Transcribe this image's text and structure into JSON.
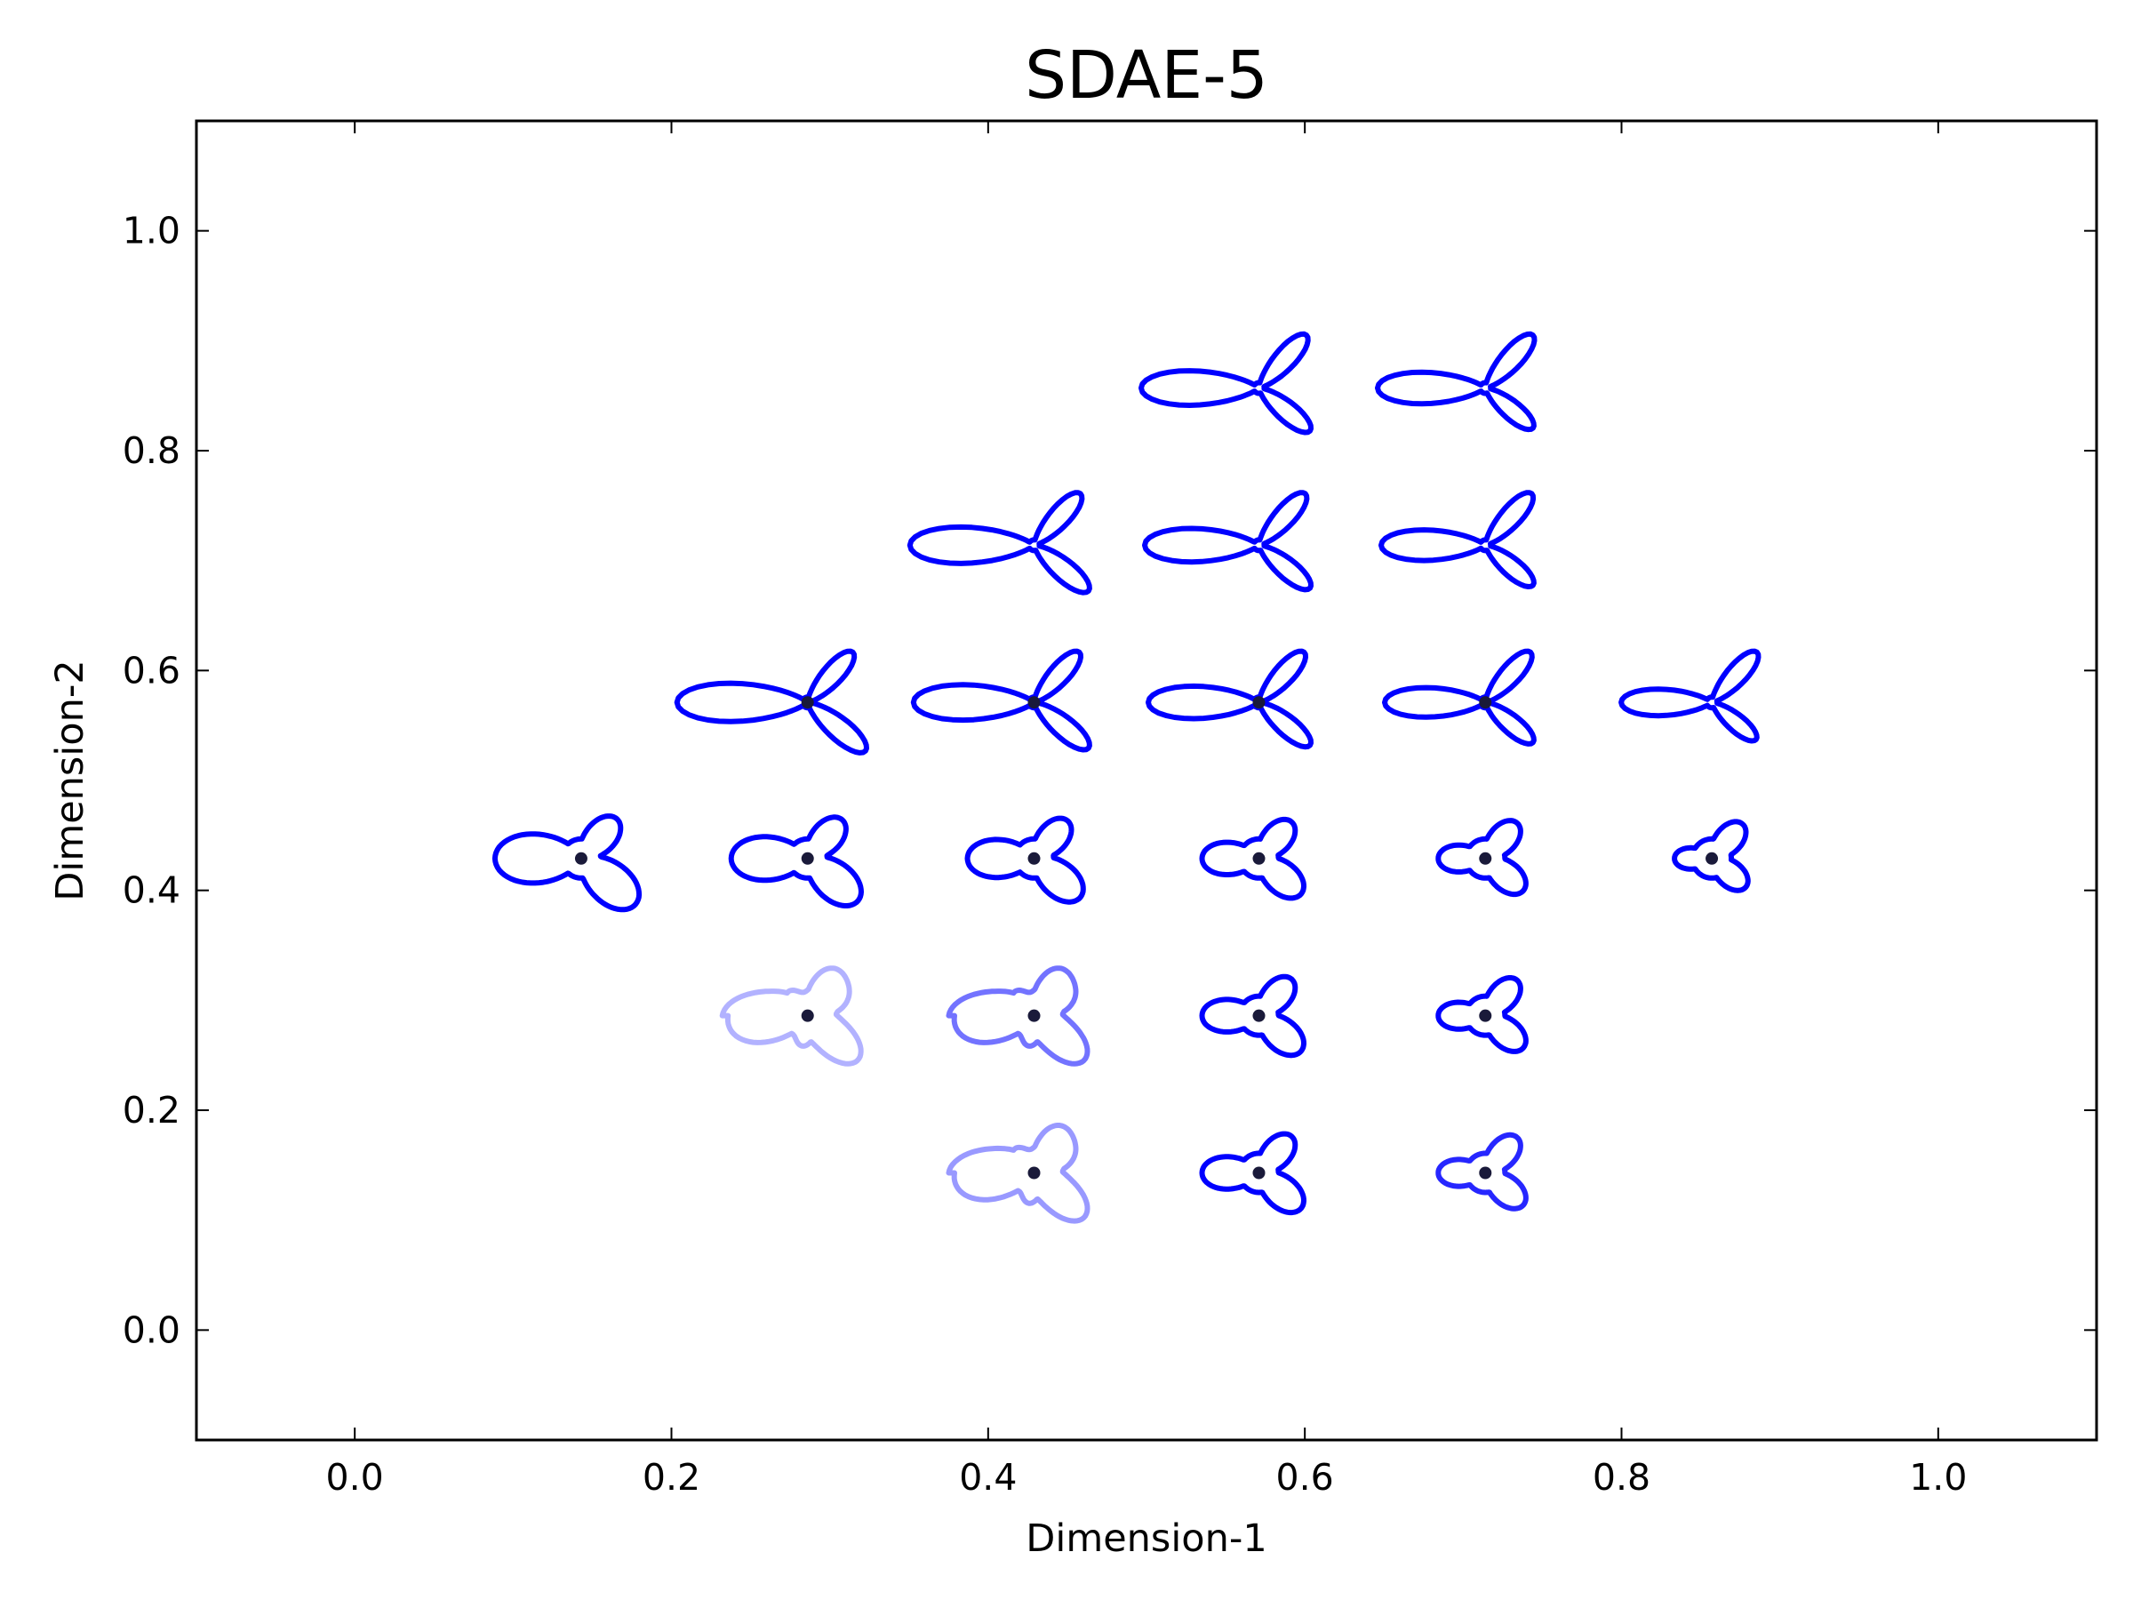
{
  "chart_data": {
    "type": "scatter",
    "title": "SDAE-5",
    "xlabel": "Dimension-1",
    "ylabel": "Dimension-2",
    "xlim": [
      -0.1,
      1.1
    ],
    "ylim": [
      -0.1,
      1.1
    ],
    "xticks": [
      0.0,
      0.2,
      0.4,
      0.6,
      0.8,
      1.0
    ],
    "yticks": [
      0.0,
      0.2,
      0.4,
      0.6,
      0.8,
      1.0
    ],
    "xtick_labels": [
      "0.0",
      "0.2",
      "0.4",
      "0.6",
      "0.8",
      "1.0"
    ],
    "ytick_labels": [
      "0.0",
      "0.2",
      "0.4",
      "0.6",
      "0.8",
      "1.0"
    ],
    "grid": false,
    "colors": {
      "glyph": "#0000ff",
      "dot": "#1a1a3a",
      "frame": "#000000"
    },
    "points": [
      {
        "x": 0.571,
        "y": 0.857,
        "shape": "tri-blade",
        "opacity": 1.0,
        "marker": false
      },
      {
        "x": 0.714,
        "y": 0.857,
        "shape": "tri-blade",
        "opacity": 1.0,
        "marker": false
      },
      {
        "x": 0.429,
        "y": 0.714,
        "shape": "tri-blade",
        "opacity": 1.0,
        "marker": false
      },
      {
        "x": 0.571,
        "y": 0.714,
        "shape": "tri-blade",
        "opacity": 1.0,
        "marker": false
      },
      {
        "x": 0.714,
        "y": 0.714,
        "shape": "tri-blade",
        "opacity": 1.0,
        "marker": false
      },
      {
        "x": 0.286,
        "y": 0.571,
        "shape": "tri-blade",
        "opacity": 1.0,
        "marker": true
      },
      {
        "x": 0.429,
        "y": 0.571,
        "shape": "tri-blade",
        "opacity": 1.0,
        "marker": true
      },
      {
        "x": 0.571,
        "y": 0.571,
        "shape": "tri-blade",
        "opacity": 1.0,
        "marker": true
      },
      {
        "x": 0.714,
        "y": 0.571,
        "shape": "tri-blade",
        "opacity": 1.0,
        "marker": true
      },
      {
        "x": 0.857,
        "y": 0.571,
        "shape": "tri-blade",
        "opacity": 1.0,
        "marker": false
      },
      {
        "x": 0.143,
        "y": 0.429,
        "shape": "tri-lobe",
        "opacity": 1.0,
        "marker": true
      },
      {
        "x": 0.286,
        "y": 0.429,
        "shape": "tri-lobe",
        "opacity": 1.0,
        "marker": true
      },
      {
        "x": 0.429,
        "y": 0.429,
        "shape": "tri-lobe",
        "opacity": 1.0,
        "marker": true
      },
      {
        "x": 0.571,
        "y": 0.429,
        "shape": "tri-lobe",
        "opacity": 1.0,
        "marker": true
      },
      {
        "x": 0.714,
        "y": 0.429,
        "shape": "tri-lobe",
        "opacity": 1.0,
        "marker": true
      },
      {
        "x": 0.857,
        "y": 0.429,
        "shape": "tri-lobe",
        "opacity": 1.0,
        "marker": true
      },
      {
        "x": 0.286,
        "y": 0.286,
        "shape": "blob",
        "opacity": 0.3,
        "marker": true
      },
      {
        "x": 0.429,
        "y": 0.286,
        "shape": "blob",
        "opacity": 0.55,
        "marker": true
      },
      {
        "x": 0.571,
        "y": 0.286,
        "shape": "tri-lobe",
        "opacity": 1.0,
        "marker": true
      },
      {
        "x": 0.714,
        "y": 0.286,
        "shape": "tri-lobe",
        "opacity": 1.0,
        "marker": true
      },
      {
        "x": 0.429,
        "y": 0.143,
        "shape": "blob",
        "opacity": 0.4,
        "marker": true
      },
      {
        "x": 0.571,
        "y": 0.143,
        "shape": "tri-lobe",
        "opacity": 1.0,
        "marker": true
      },
      {
        "x": 0.714,
        "y": 0.143,
        "shape": "tri-lobe",
        "opacity": 0.85,
        "marker": true
      }
    ]
  }
}
